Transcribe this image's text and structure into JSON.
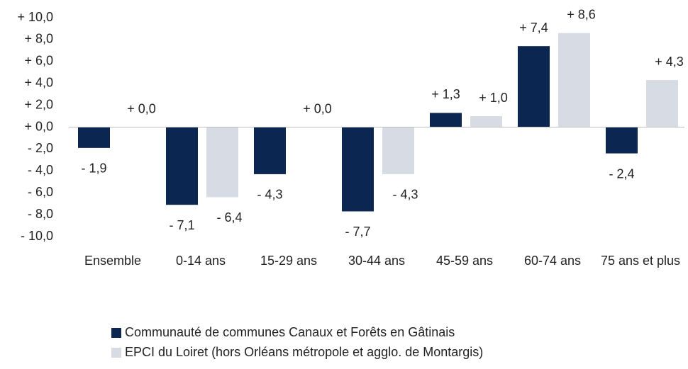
{
  "chart_data": {
    "type": "bar",
    "categories": [
      "Ensemble",
      "0-14 ans",
      "15-29 ans",
      "30-44 ans",
      "45-59 ans",
      "60-74 ans",
      "75 ans et plus"
    ],
    "series": [
      {
        "name": "Communauté de communes Canaux et Forêts en Gâtinais",
        "color": "#0b2650",
        "values": [
          -1.9,
          -7.1,
          -4.3,
          -7.7,
          1.3,
          7.4,
          -2.4
        ],
        "value_labels": [
          "- 1,9",
          "- 7,1",
          "- 4,3",
          "- 7,7",
          "+ 1,3",
          "+ 7,4",
          "- 2,4"
        ]
      },
      {
        "name": "EPCI du Loiret (hors Orléans métropole et agglo. de Montargis)",
        "color": "#d6dbe4",
        "values": [
          0.0,
          -6.4,
          0.0,
          -4.3,
          1.0,
          8.6,
          4.3
        ],
        "value_labels": [
          "+ 0,0",
          "- 6,4",
          "+ 0,0",
          "- 4,3",
          "+ 1,0",
          "+ 8,6",
          "+ 4,3"
        ]
      }
    ],
    "ylim": [
      -10,
      10
    ],
    "yticks": [
      {
        "value": 10,
        "label": "+ 10,0"
      },
      {
        "value": 8,
        "label": "+ 8,0"
      },
      {
        "value": 6,
        "label": "+ 6,0"
      },
      {
        "value": 4,
        "label": "+ 4,0"
      },
      {
        "value": 2,
        "label": "+ 2,0"
      },
      {
        "value": 0,
        "label": "+ 0,0"
      },
      {
        "value": -2,
        "label": "- 2,0"
      },
      {
        "value": -4,
        "label": "- 4,0"
      },
      {
        "value": -6,
        "label": "- 6,0"
      },
      {
        "value": -8,
        "label": "- 8,0"
      },
      {
        "value": -10,
        "label": "- 10,0"
      }
    ],
    "grid": false,
    "legend": "bottom"
  }
}
